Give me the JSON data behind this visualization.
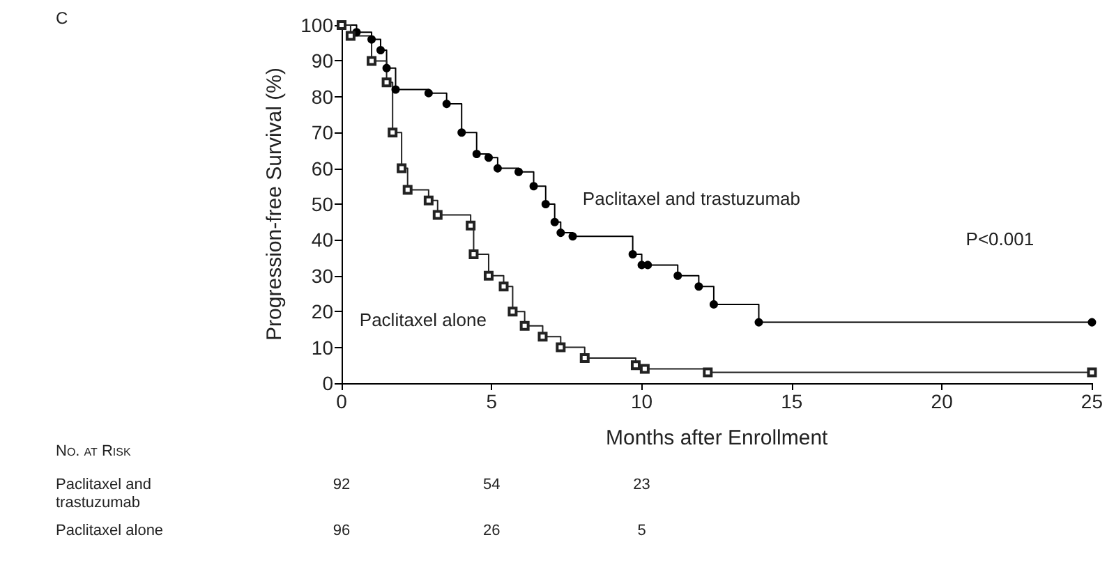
{
  "chart_data": {
    "type": "step",
    "xlabel": "Months after Enrollment",
    "ylabel": "Progression-free Survival (%)",
    "xlim": [
      0,
      25
    ],
    "xticks": [
      0,
      5,
      10,
      15,
      20,
      25
    ],
    "ylim": [
      0,
      100
    ],
    "yticks": [
      0,
      10,
      20,
      30,
      40,
      50,
      60,
      70,
      80,
      90,
      100
    ],
    "grid": false,
    "legend": false,
    "line_style": "solid",
    "series": [
      {
        "name": "Paclitaxel and trastuzumab",
        "color": "#000000",
        "marker": "circle",
        "x": [
          0,
          0.5,
          1,
          1.3,
          1.5,
          1.8,
          2.9,
          3.5,
          4,
          4.5,
          4.9,
          5.2,
          5.9,
          6.4,
          6.8,
          7.1,
          7.3,
          7.7,
          9.7,
          10,
          10.2,
          11.2,
          11.9,
          12.4,
          13.9,
          25
        ],
        "values": [
          100,
          98,
          96,
          93,
          88,
          82,
          81,
          78,
          70,
          64,
          63,
          60,
          59,
          55,
          50,
          45,
          42,
          41,
          36,
          33,
          33,
          30,
          27,
          22,
          17,
          17
        ]
      },
      {
        "name": "Paclitaxel alone",
        "color": "#222222",
        "marker": "square",
        "x": [
          0,
          0.3,
          1,
          1.5,
          1.7,
          2,
          2.2,
          2.9,
          3.2,
          4.3,
          4.4,
          4.9,
          5.4,
          5.7,
          6.1,
          6.7,
          7.3,
          8.1,
          9.8,
          10.1,
          12.2,
          25
        ],
        "values": [
          100,
          97,
          90,
          84,
          70,
          60,
          54,
          51,
          47,
          44,
          36,
          30,
          27,
          20,
          16,
          13,
          10,
          7,
          5,
          4,
          3,
          3
        ]
      }
    ],
    "annotations": [
      "C",
      "P<0.001",
      "No. at Risk",
      "Paclitaxel and\ntrastuzumab",
      "Paclitaxel alone",
      "92",
      "54",
      "23",
      "96",
      "26",
      "5"
    ]
  }
}
